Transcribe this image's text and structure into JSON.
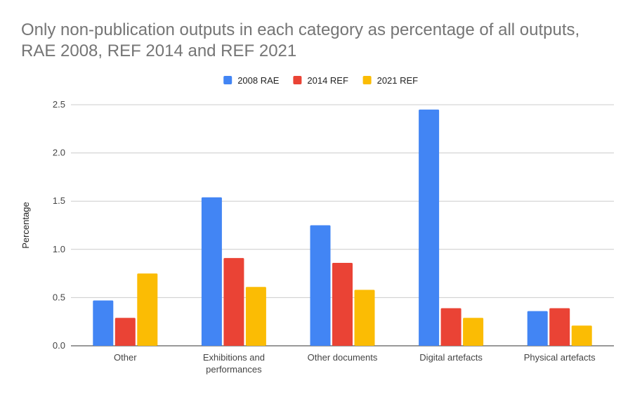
{
  "chart_data": {
    "type": "bar",
    "title": [
      "Only non-publication outputs in each category as percentage of all outputs,",
      "RAE 2008, REF 2014 and REF 2021"
    ],
    "xlabel": "",
    "ylabel": "Percentage",
    "ylim": [
      0,
      2.5
    ],
    "yticks": [
      0,
      0.5,
      1.0,
      1.5,
      2.0,
      2.5
    ],
    "ytick_labels": [
      "0.0",
      "0.5",
      "1.0",
      "1.5",
      "2.0",
      "2.5"
    ],
    "grid": true,
    "legend_position": "top",
    "categories": [
      [
        "Other"
      ],
      [
        "Exhibitions and",
        "performances"
      ],
      [
        "Other documents"
      ],
      [
        "Digital artefacts"
      ],
      [
        "Physical artefacts"
      ]
    ],
    "series": [
      {
        "name": "2008 RAE",
        "color": "#4285f4",
        "values": [
          0.47,
          1.54,
          1.25,
          2.45,
          0.36
        ]
      },
      {
        "name": "2014 REF",
        "color": "#ea4335",
        "values": [
          0.29,
          0.91,
          0.86,
          0.39,
          0.39
        ]
      },
      {
        "name": "2021 REF",
        "color": "#fbbc04",
        "values": [
          0.75,
          0.61,
          0.58,
          0.29,
          0.21
        ]
      }
    ]
  }
}
